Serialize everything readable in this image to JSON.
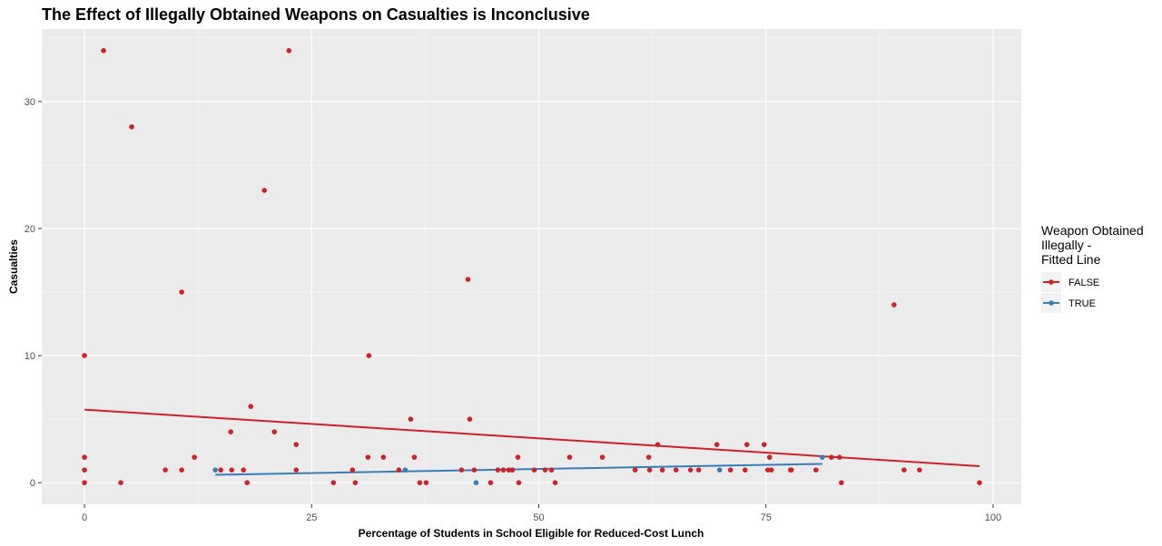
{
  "chart_data": {
    "type": "scatter",
    "title": "The Effect of Illegally Obtained Weapons on Casualties is Inconclusive",
    "xlabel": "Percentage of Students in School Eligible for Reduced-Cost Lunch",
    "ylabel": "Casualties",
    "xlim": [
      -4.7,
      103.1
    ],
    "ylim": [
      -1.7,
      35.7
    ],
    "x_ticks": [
      0,
      25,
      50,
      75,
      100
    ],
    "x_tick_labels": [
      "0",
      "25",
      "50",
      "75",
      "100"
    ],
    "y_ticks": [
      0,
      10,
      20,
      30
    ],
    "y_tick_labels": [
      "0",
      "10",
      "20",
      "30"
    ],
    "grid": true,
    "legend": {
      "title_lines": [
        "Weapon Obtained",
        "Illegally -",
        "Fitted Line"
      ],
      "placement": "right"
    },
    "series": [
      {
        "name": "FALSE",
        "color": "#cc2229",
        "points": [
          [
            0,
            10
          ],
          [
            0,
            2
          ],
          [
            0,
            1
          ],
          [
            0,
            0
          ],
          [
            2.1,
            34
          ],
          [
            4,
            0
          ],
          [
            5.2,
            28
          ],
          [
            8.9,
            1
          ],
          [
            10.7,
            15
          ],
          [
            10.7,
            1
          ],
          [
            12.1,
            2
          ],
          [
            15,
            1
          ],
          [
            16.1,
            4
          ],
          [
            16.2,
            1
          ],
          [
            17.5,
            1
          ],
          [
            17.9,
            0
          ],
          [
            18.3,
            6
          ],
          [
            19.8,
            23
          ],
          [
            20.9,
            4
          ],
          [
            22.5,
            34
          ],
          [
            23.3,
            3
          ],
          [
            23.3,
            1
          ],
          [
            27.4,
            0
          ],
          [
            29.5,
            1
          ],
          [
            29.8,
            0
          ],
          [
            31.3,
            10
          ],
          [
            31.2,
            2
          ],
          [
            32.9,
            2
          ],
          [
            34.6,
            1
          ],
          [
            35.9,
            5
          ],
          [
            36.3,
            2
          ],
          [
            36.9,
            0
          ],
          [
            37.6,
            0
          ],
          [
            41.5,
            1
          ],
          [
            42.2,
            16
          ],
          [
            42.4,
            5
          ],
          [
            42.9,
            1
          ],
          [
            44.7,
            0
          ],
          [
            45.5,
            1
          ],
          [
            46.1,
            1
          ],
          [
            46.7,
            1
          ],
          [
            47.1,
            1
          ],
          [
            47.7,
            2
          ],
          [
            47.8,
            0
          ],
          [
            49.5,
            1
          ],
          [
            50.7,
            1
          ],
          [
            51.4,
            1
          ],
          [
            51.8,
            0
          ],
          [
            53.4,
            2
          ],
          [
            57,
            2
          ],
          [
            60.6,
            1
          ],
          [
            62.1,
            2
          ],
          [
            62.2,
            1
          ],
          [
            63.1,
            3
          ],
          [
            63.6,
            1
          ],
          [
            65.1,
            1
          ],
          [
            66.7,
            1
          ],
          [
            67.6,
            1
          ],
          [
            69.6,
            3
          ],
          [
            71.1,
            1
          ],
          [
            72.9,
            3
          ],
          [
            72.7,
            1
          ],
          [
            74.8,
            3
          ],
          [
            75.2,
            1
          ],
          [
            75.4,
            2
          ],
          [
            75.6,
            1
          ],
          [
            77.7,
            1
          ],
          [
            77.8,
            1
          ],
          [
            80.5,
            1
          ],
          [
            82.2,
            2
          ],
          [
            83.1,
            2
          ],
          [
            83.3,
            0
          ],
          [
            89.1,
            14
          ],
          [
            90.2,
            1
          ],
          [
            91.9,
            1
          ],
          [
            98.5,
            0
          ]
        ],
        "fit": [
          [
            0,
            5.75
          ],
          [
            98.5,
            1.3
          ]
        ]
      },
      {
        "name": "TRUE",
        "color": "#377eb8",
        "points": [
          [
            14.4,
            1
          ],
          [
            35.3,
            1
          ],
          [
            43.1,
            0
          ],
          [
            69.9,
            1
          ],
          [
            81.2,
            2
          ]
        ],
        "fit": [
          [
            14.4,
            0.62
          ],
          [
            81.2,
            1.48
          ]
        ]
      }
    ]
  }
}
